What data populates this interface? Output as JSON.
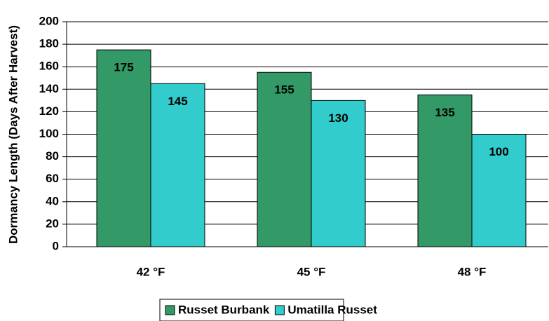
{
  "chart_data": {
    "type": "bar",
    "y_label": "Dormancy Length (Days After Harvest)",
    "categories": [
      "42 °F",
      "45 °F",
      "48 °F"
    ],
    "series": [
      {
        "name": "Russet Burbank",
        "color": "#339966",
        "values": [
          175,
          155,
          135
        ]
      },
      {
        "name": "Umatilla Russet",
        "color": "#33cccc",
        "values": [
          145,
          130,
          100
        ]
      }
    ],
    "ylim": [
      0,
      200
    ],
    "yticks": [
      0,
      20,
      40,
      60,
      80,
      100,
      120,
      140,
      160,
      180,
      200
    ],
    "grid": true,
    "legend": "bottom"
  }
}
